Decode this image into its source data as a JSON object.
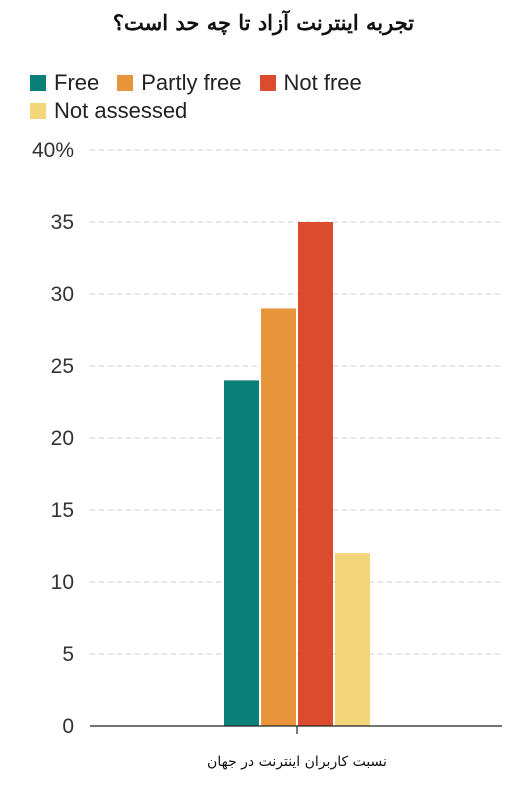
{
  "chart_data": {
    "type": "bar",
    "title": "تجربه اینترنت آزاد تا چه حد است؟",
    "categories": [
      "نسبت کاربران اینترنت در جهان"
    ],
    "series": [
      {
        "name": "Free",
        "values": [
          24
        ],
        "color": "#0a7f78"
      },
      {
        "name": "Partly free",
        "values": [
          29
        ],
        "color": "#e8943a"
      },
      {
        "name": "Not free",
        "values": [
          35
        ],
        "color": "#dd4b2e"
      },
      {
        "name": "Not assessed",
        "values": [
          12
        ],
        "color": "#f3d57a"
      }
    ],
    "yticks": [
      "0",
      "5",
      "10",
      "15",
      "20",
      "25",
      "30",
      "35",
      "40%"
    ],
    "ylim": [
      0,
      40
    ],
    "grid": true,
    "legend_position": "top-left"
  }
}
